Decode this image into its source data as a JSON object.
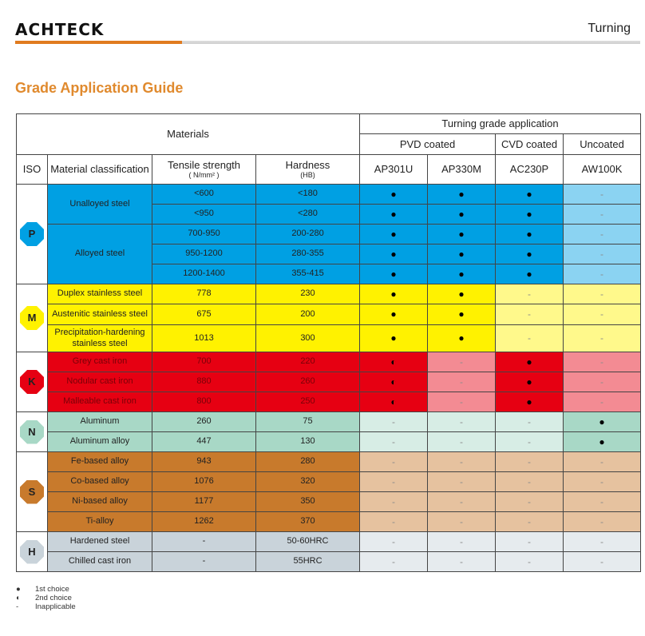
{
  "header": {
    "logo": "ACHTECK",
    "section": "Turning"
  },
  "title": "Grade Application Guide",
  "colors": {
    "accent": "#e07b1f",
    "P": "#00a0e3",
    "M": "#fff200",
    "K": "#e60012",
    "N": "#a8d8c6",
    "S": "#c87a2c",
    "H": "#c9d3da"
  },
  "table": {
    "materials_header": "Materials",
    "grade_header": "Turning grade application",
    "coating_groups": [
      "PVD coated",
      "CVD coated",
      "Uncoated"
    ],
    "columns": {
      "iso": "ISO",
      "classification": "Material classification",
      "tensile": "Tensile strength",
      "tensile_unit": "( N/mm² )",
      "hardness": "Hardness",
      "hardness_unit": "(HB)"
    },
    "grades": [
      "AP301U",
      "AP330M",
      "AC230P",
      "AW100K"
    ],
    "groups": [
      {
        "iso": "P",
        "rows": [
          {
            "material": "Unalloyed steel",
            "tensile": "<600",
            "hardness": "<180",
            "marks": [
              "●",
              "●",
              "●",
              "-"
            ]
          },
          {
            "material": "",
            "tensile": "<950",
            "hardness": "<280",
            "marks": [
              "●",
              "●",
              "●",
              "-"
            ]
          },
          {
            "material": "Alloyed steel",
            "tensile": "700-950",
            "hardness": "200-280",
            "marks": [
              "●",
              "●",
              "●",
              "-"
            ]
          },
          {
            "material": "",
            "tensile": "950-1200",
            "hardness": "280-355",
            "marks": [
              "●",
              "●",
              "●",
              "-"
            ]
          },
          {
            "material": "",
            "tensile": "1200-1400",
            "hardness": "355-415",
            "marks": [
              "●",
              "●",
              "●",
              "-"
            ]
          }
        ]
      },
      {
        "iso": "M",
        "rows": [
          {
            "material": "Duplex stainless steel",
            "tensile": "778",
            "hardness": "230",
            "marks": [
              "●",
              "●",
              "-",
              "-"
            ]
          },
          {
            "material": "Austenitic stainless steel",
            "tensile": "675",
            "hardness": "200",
            "marks": [
              "●",
              "●",
              "-",
              "-"
            ]
          },
          {
            "material": "Precipitation-hardening stainless steel",
            "tensile": "1013",
            "hardness": "300",
            "marks": [
              "●",
              "●",
              "-",
              "-"
            ]
          }
        ]
      },
      {
        "iso": "K",
        "rows": [
          {
            "material": "Grey cast iron",
            "tensile": "700",
            "hardness": "220",
            "marks": [
              "◐",
              "-",
              "●",
              "-"
            ]
          },
          {
            "material": "Nodular cast iron",
            "tensile": "880",
            "hardness": "260",
            "marks": [
              "◐",
              "-",
              "●",
              "-"
            ]
          },
          {
            "material": "Malleable cast iron",
            "tensile": "800",
            "hardness": "250",
            "marks": [
              "◐",
              "-",
              "●",
              "-"
            ]
          }
        ]
      },
      {
        "iso": "N",
        "rows": [
          {
            "material": "Aluminum",
            "tensile": "260",
            "hardness": "75",
            "marks": [
              "-",
              "-",
              "-",
              "●"
            ]
          },
          {
            "material": "Aluminum alloy",
            "tensile": "447",
            "hardness": "130",
            "marks": [
              "-",
              "-",
              "-",
              "●"
            ]
          }
        ]
      },
      {
        "iso": "S",
        "rows": [
          {
            "material": "Fe-based alloy",
            "tensile": "943",
            "hardness": "280",
            "marks": [
              "-",
              "-",
              "-",
              "-"
            ]
          },
          {
            "material": "Co-based alloy",
            "tensile": "1076",
            "hardness": "320",
            "marks": [
              "-",
              "-",
              "-",
              "-"
            ]
          },
          {
            "material": "Ni-based alloy",
            "tensile": "1177",
            "hardness": "350",
            "marks": [
              "-",
              "-",
              "-",
              "-"
            ]
          },
          {
            "material": "Ti-alloy",
            "tensile": "1262",
            "hardness": "370",
            "marks": [
              "-",
              "-",
              "-",
              "-"
            ]
          }
        ]
      },
      {
        "iso": "H",
        "rows": [
          {
            "material": "Hardened steel",
            "tensile": "-",
            "hardness": "50-60HRC",
            "marks": [
              "-",
              "-",
              "-",
              "-"
            ]
          },
          {
            "material": "Chilled cast iron",
            "tensile": "-",
            "hardness": "55HRC",
            "marks": [
              "-",
              "-",
              "-",
              "-"
            ]
          }
        ]
      }
    ]
  },
  "legend": [
    {
      "symbol": "●",
      "label": "1st choice"
    },
    {
      "symbol": "◐",
      "label": "2nd choice"
    },
    {
      "symbol": "-",
      "label": "Inapplicable"
    }
  ]
}
